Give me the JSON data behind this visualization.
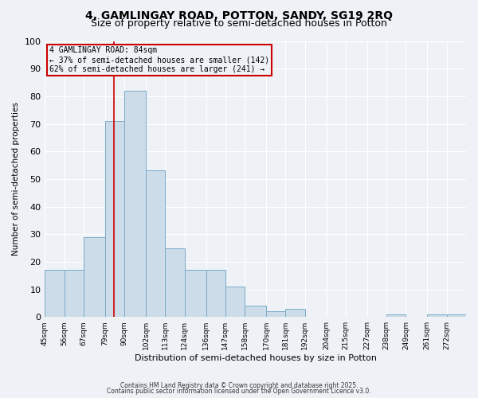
{
  "title1": "4, GAMLINGAY ROAD, POTTON, SANDY, SG19 2RQ",
  "title2": "Size of property relative to semi-detached houses in Potton",
  "xlabel": "Distribution of semi-detached houses by size in Potton",
  "ylabel": "Number of semi-detached properties",
  "bin_edges": [
    45,
    56,
    67,
    79,
    90,
    102,
    113,
    124,
    136,
    147,
    158,
    170,
    181,
    192,
    204,
    215,
    227,
    238,
    249,
    261,
    272,
    283
  ],
  "bar_heights": [
    17,
    17,
    29,
    71,
    82,
    53,
    25,
    17,
    17,
    11,
    4,
    2,
    3,
    0,
    0,
    0,
    0,
    1,
    0,
    1,
    1
  ],
  "bar_color": "#ccdce8",
  "bar_edgecolor": "#7aaac8",
  "red_line_x": 84,
  "annotation_line1": "4 GAMLINGAY ROAD: 84sqm",
  "annotation_line2": "← 37% of semi-detached houses are smaller (142)",
  "annotation_line3": "62% of semi-detached houses are larger (241) →",
  "annotation_box_color": "#cc0000",
  "ylim": [
    0,
    100
  ],
  "yticks": [
    0,
    10,
    20,
    30,
    40,
    50,
    60,
    70,
    80,
    90,
    100
  ],
  "xtick_labels": [
    "45sqm",
    "56sqm",
    "67sqm",
    "79sqm",
    "90sqm",
    "102sqm",
    "113sqm",
    "124sqm",
    "136sqm",
    "147sqm",
    "158sqm",
    "170sqm",
    "181sqm",
    "192sqm",
    "204sqm",
    "215sqm",
    "227sqm",
    "238sqm",
    "249sqm",
    "261sqm",
    "272sqm"
  ],
  "footer1": "Contains HM Land Registry data © Crown copyright and database right 2025.",
  "footer2": "Contains public sector information licensed under the Open Government Licence v3.0.",
  "bg_color": "#eef2f7",
  "grid_color": "#ffffff",
  "title1_fontsize": 10,
  "title2_fontsize": 9
}
